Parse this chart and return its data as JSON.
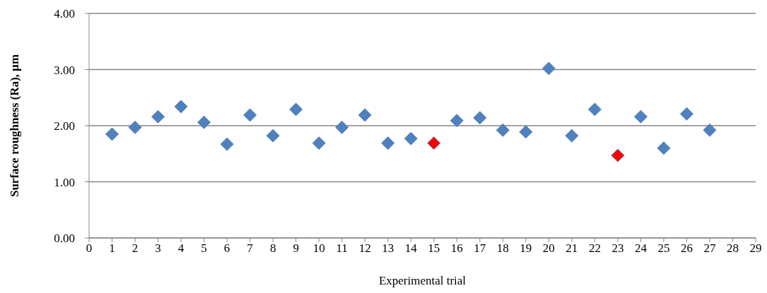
{
  "chart_data": {
    "type": "scatter",
    "xlabel": "Experimental trial",
    "ylabel": "Surface roughness (Ra), µm",
    "series": [
      {
        "color": "#4f81bd",
        "x": [
          1,
          2,
          3,
          4,
          5,
          6,
          7,
          8,
          9,
          10,
          11,
          12,
          13,
          14,
          16,
          17,
          18,
          19,
          20,
          21,
          22,
          24,
          25,
          26,
          27
        ],
        "values": [
          1.85,
          1.97,
          2.16,
          2.34,
          2.06,
          1.67,
          2.19,
          1.82,
          2.29,
          1.69,
          1.97,
          2.19,
          1.69,
          1.77,
          2.09,
          2.14,
          1.92,
          1.89,
          3.02,
          1.82,
          2.29,
          2.16,
          1.6,
          2.21,
          1.92
        ]
      },
      {
        "color": "#ff0000",
        "x": [
          15,
          23
        ],
        "values": [
          1.69,
          1.47
        ]
      }
    ],
    "xlim": [
      0,
      29
    ],
    "xticks": [
      0,
      1,
      2,
      3,
      4,
      5,
      6,
      7,
      8,
      9,
      10,
      11,
      12,
      13,
      14,
      15,
      16,
      17,
      18,
      19,
      20,
      21,
      22,
      23,
      24,
      25,
      26,
      27,
      28,
      29
    ],
    "ylim": [
      0,
      4
    ],
    "yticks": [
      {
        "value": 0,
        "label": "0.00"
      },
      {
        "value": 1,
        "label": "1.00"
      },
      {
        "value": 2,
        "label": "2.00"
      },
      {
        "value": 3,
        "label": "3.00"
      },
      {
        "value": 4,
        "label": "4.00"
      }
    ],
    "grid": "y",
    "legend": false,
    "marker": "diamond"
  }
}
